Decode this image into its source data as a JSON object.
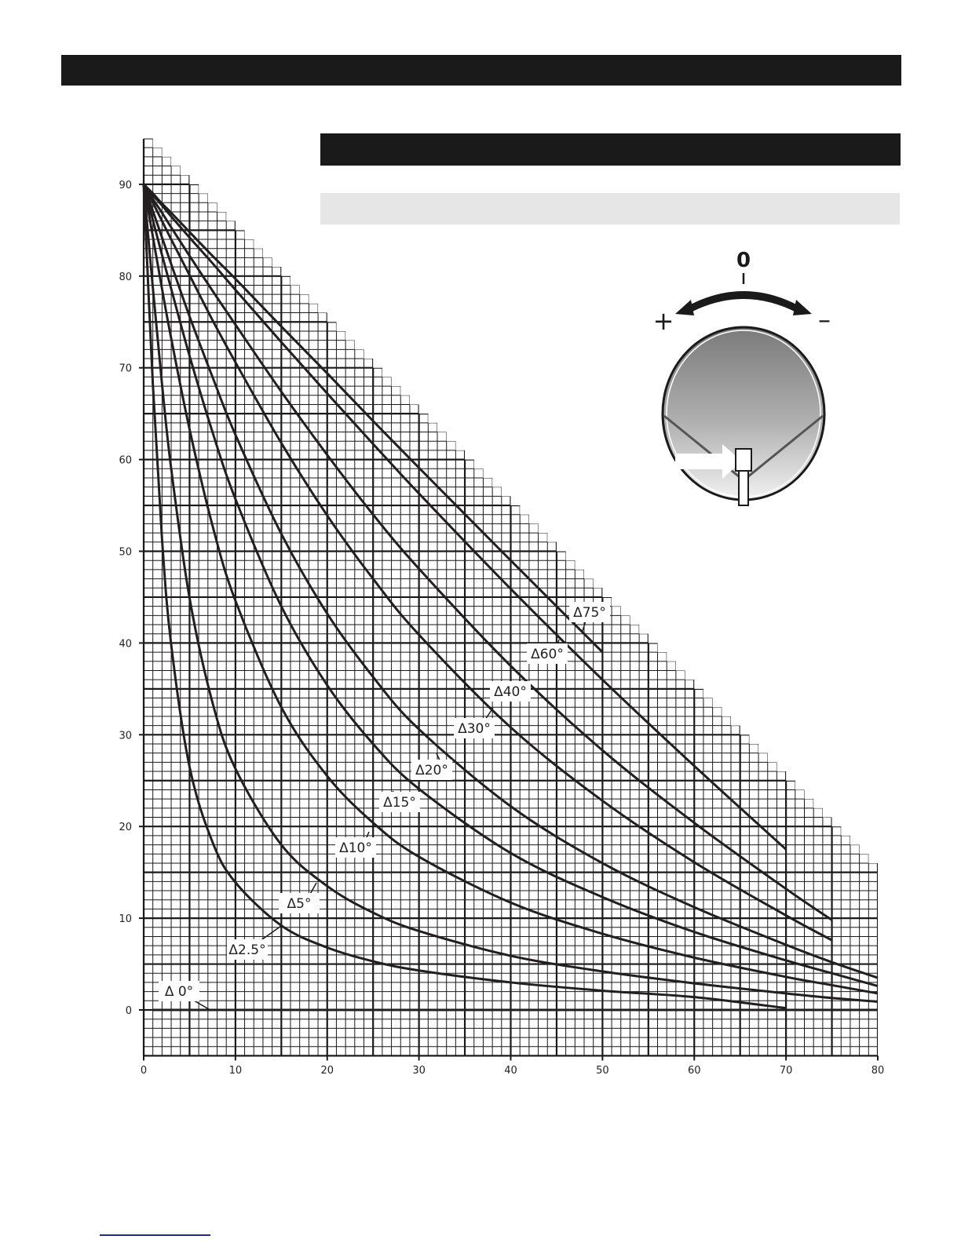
{
  "colors": {
    "bar": "#1a1a1a",
    "subbar": "#e6e6e6",
    "curve": "#231f20",
    "footer_line": "#1f2a8a"
  },
  "dish_diagram": {
    "zero_label": "0",
    "plus_label": "+",
    "minus_label": "–",
    "icon": "satellite-dish-skew-icon"
  },
  "chart_data": {
    "type": "line",
    "title": "",
    "xlabel": "",
    "ylabel": "",
    "xlim": [
      0,
      80
    ],
    "ylim": [
      -5,
      95
    ],
    "grid": true,
    "legend": "inline-labels",
    "x_ticks": [
      "0",
      "10",
      "20",
      "30",
      "40",
      "50",
      "60",
      "70",
      "80"
    ],
    "y_ticks": [
      "0",
      "10",
      "20",
      "30",
      "40",
      "50",
      "60",
      "70",
      "80",
      "90"
    ],
    "series": [
      {
        "name": "Δ 0°",
        "x": [
          1,
          80
        ],
        "values": [
          0,
          0
        ]
      },
      {
        "name": "Δ2.5°",
        "x": [
          0,
          1,
          2,
          3,
          5,
          7.5,
          10,
          15,
          20,
          25,
          30,
          40,
          50,
          60,
          70
        ],
        "values": [
          90,
          68.2,
          51.3,
          39.8,
          26.5,
          18.3,
          13.9,
          9.2,
          6.8,
          5.3,
          4.3,
          3.0,
          2.1,
          1.4,
          0.2
        ]
      },
      {
        "name": "Δ5°",
        "x": [
          0,
          1,
          2,
          3,
          5,
          7.5,
          10,
          15,
          20,
          25,
          30,
          40,
          50,
          60,
          70,
          75,
          80
        ],
        "values": [
          90,
          78.7,
          68.2,
          59.0,
          44.9,
          33.5,
          26.3,
          18.0,
          13.5,
          10.6,
          8.6,
          5.9,
          4.2,
          2.9,
          1.8,
          1.3,
          0.9
        ]
      },
      {
        "name": "Δ10°",
        "x": [
          0,
          1,
          2,
          3,
          5,
          7.5,
          10,
          15,
          20,
          25,
          30,
          40,
          50,
          60,
          70,
          75,
          80
        ],
        "values": [
          90,
          84.3,
          78.6,
          73.2,
          63.3,
          52.8,
          44.6,
          33.0,
          25.5,
          20.4,
          16.7,
          11.7,
          8.3,
          5.7,
          3.6,
          2.7,
          1.8
        ]
      },
      {
        "name": "Δ15°",
        "x": [
          0,
          1,
          2,
          3,
          5,
          7.5,
          10,
          15,
          20,
          25,
          30,
          40,
          50,
          60,
          70,
          75,
          80
        ],
        "values": [
          90,
          86.1,
          82.3,
          78.6,
          71.3,
          63.0,
          55.7,
          44.0,
          35.4,
          29.0,
          24.1,
          17.1,
          12.3,
          8.5,
          5.4,
          4.0,
          2.6
        ]
      },
      {
        "name": "Δ20°",
        "x": [
          0,
          1,
          2,
          3,
          5,
          7.5,
          10,
          15,
          20,
          25,
          30,
          40,
          50,
          60,
          70,
          75,
          80
        ],
        "values": [
          90,
          87.1,
          84.2,
          81.3,
          75.6,
          69.0,
          62.7,
          51.9,
          43.2,
          36.3,
          30.6,
          22.2,
          16.0,
          11.2,
          7.1,
          5.2,
          3.5
        ]
      },
      {
        "name": "Δ30°",
        "x": [
          0,
          1,
          2,
          3,
          5,
          7.5,
          10,
          15,
          20,
          25,
          30,
          40,
          50,
          60,
          70,
          75
        ],
        "values": [
          90,
          88.0,
          86.0,
          84.0,
          80.1,
          75.2,
          70.6,
          61.8,
          53.9,
          47.0,
          40.9,
          30.8,
          22.8,
          16.1,
          10.3,
          7.6
        ]
      },
      {
        "name": "Δ40°",
        "x": [
          0,
          1,
          2,
          3,
          5,
          7.5,
          10,
          15,
          20,
          25,
          30,
          40,
          50,
          60,
          70,
          75
        ],
        "values": [
          90,
          88.4,
          86.9,
          85.3,
          82.2,
          78.4,
          74.7,
          67.4,
          60.5,
          54.0,
          48.1,
          37.5,
          28.3,
          20.4,
          13.2,
          9.8
        ]
      },
      {
        "name": "Δ60°",
        "x": [
          0,
          1,
          2,
          3,
          5,
          7.5,
          10,
          15,
          20,
          25,
          30,
          40,
          50,
          60,
          70
        ],
        "values": [
          90,
          88.8,
          87.7,
          86.5,
          84.2,
          81.4,
          78.5,
          72.8,
          67.2,
          61.7,
          56.3,
          45.9,
          36.0,
          26.6,
          17.5
        ]
      },
      {
        "name": "Δ75°",
        "x": [
          0,
          1,
          2,
          3,
          5,
          7.5,
          10,
          15,
          20,
          25,
          30,
          40,
          50
        ],
        "values": [
          90,
          89.0,
          87.9,
          86.9,
          84.8,
          82.2,
          79.7,
          74.5,
          69.4,
          64.2,
          59.1,
          49.0,
          39.0
        ]
      }
    ]
  }
}
